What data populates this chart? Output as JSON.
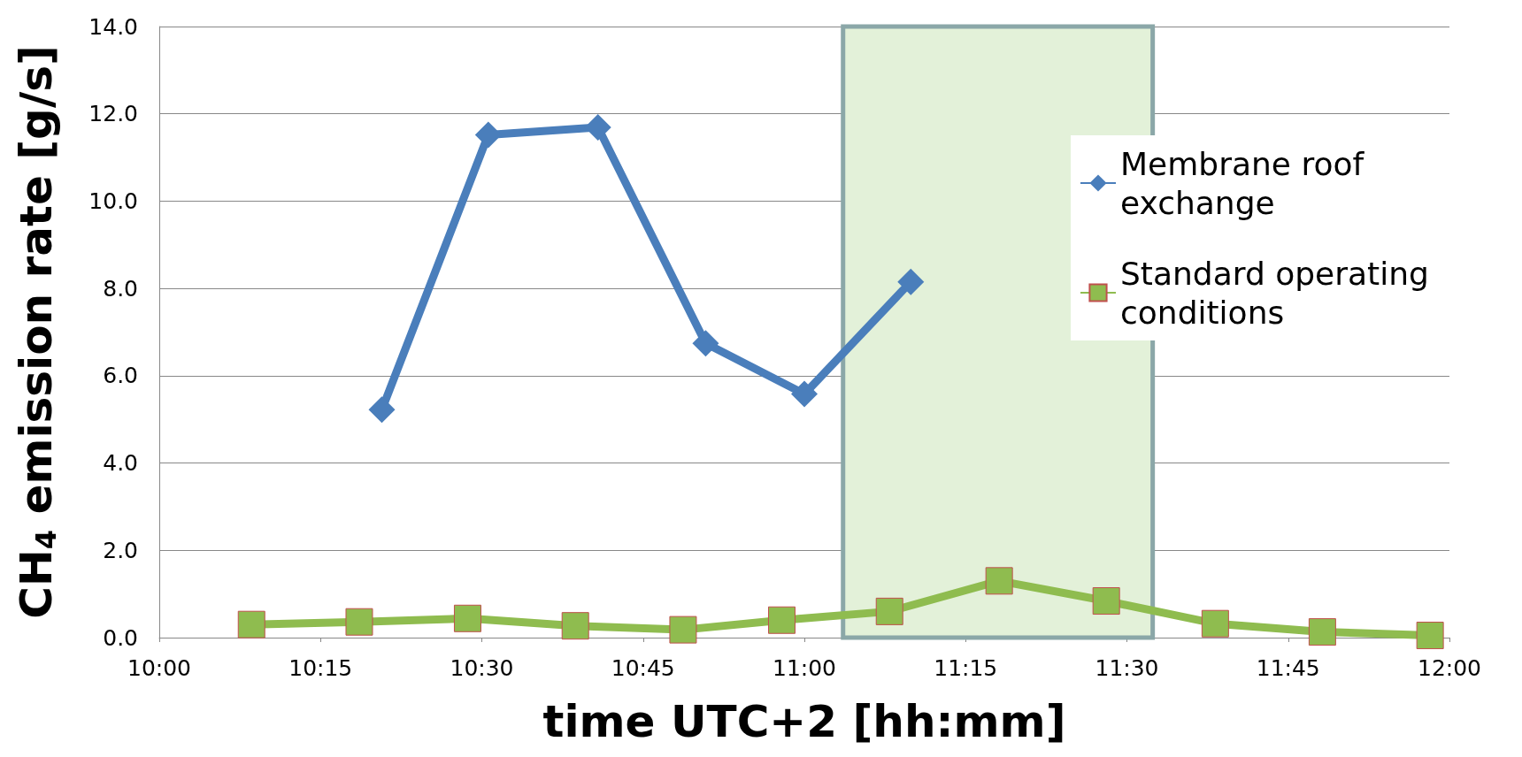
{
  "chart_data": {
    "type": "line",
    "xlabel": "time UTC+2 [hh:mm]",
    "ylabel": "CH$_{4}$ emission rate [g/s]",
    "xlim": [
      10,
      12
    ],
    "xticks": [
      {
        "value": 10,
        "label": "10:00"
      },
      {
        "value": 10.25,
        "label": "10:15"
      },
      {
        "value": 10.5,
        "label": "10:30"
      },
      {
        "value": 10.75,
        "label": "10:45"
      },
      {
        "value": 11,
        "label": "11:00"
      },
      {
        "value": 11.25,
        "label": "11:15"
      },
      {
        "value": 11.5,
        "label": "11:30"
      },
      {
        "value": 11.75,
        "label": "11:45"
      },
      {
        "value": 12,
        "label": "12:00"
      }
    ],
    "ylim": [
      0,
      14
    ],
    "yticks": [
      {
        "value": 0,
        "label": "0.0"
      },
      {
        "value": 2,
        "label": "2.0"
      },
      {
        "value": 4,
        "label": "4.0"
      },
      {
        "value": 6,
        "label": "6.0"
      },
      {
        "value": 8,
        "label": "8.0"
      },
      {
        "value": 10,
        "label": "10.0"
      },
      {
        "value": 12,
        "label": "12.0"
      },
      {
        "value": 14,
        "label": "14.0"
      }
    ],
    "grid": "y",
    "legend": "right",
    "bands": [
      {
        "axis": "x",
        "from": 11.06,
        "to": 11.54,
        "color": "#e3f1d9"
      }
    ],
    "series": [
      {
        "name": "Membrane roof exchange",
        "color": "#4a7ebb",
        "marker": "diamond",
        "x": [
          10.345,
          10.51,
          10.68,
          10.847,
          11.0,
          11.165
        ],
        "values": [
          5.22,
          11.52,
          11.69,
          6.74,
          5.58,
          8.15
        ]
      },
      {
        "name": "Standard operating conditions",
        "color": "#8fbc4f",
        "marker": "square",
        "x": [
          10.143,
          10.31,
          10.478,
          10.645,
          10.812,
          10.965,
          11.132,
          11.302,
          11.468,
          11.637,
          11.803,
          11.97
        ],
        "values": [
          0.3,
          0.36,
          0.44,
          0.27,
          0.18,
          0.4,
          0.6,
          1.3,
          0.84,
          0.32,
          0.13,
          0.05
        ]
      }
    ]
  }
}
